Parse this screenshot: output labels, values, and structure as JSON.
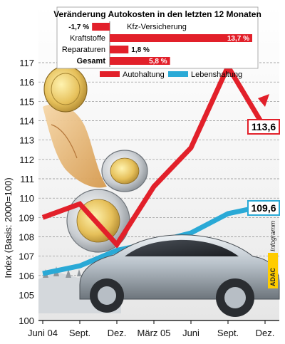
{
  "chart_data": {
    "type": "line",
    "title": "",
    "ylabel": "Index (Basis: 2000=100)",
    "xlabel": "",
    "ylim": [
      100,
      118
    ],
    "yticks": [
      100,
      105,
      106,
      107,
      108,
      109,
      110,
      111,
      112,
      113,
      114,
      115,
      116,
      117
    ],
    "categories": [
      "Juni 04",
      "Sept.",
      "Dez.",
      "März 05",
      "Juni",
      "Sept.",
      "Dez."
    ],
    "grid": true,
    "series": [
      {
        "name": "Autohaltung",
        "color": "#e2202a",
        "values": [
          109.0,
          109.7,
          107.6,
          110.6,
          112.6,
          116.8,
          113.6
        ]
      },
      {
        "name": "Lebenshaltung",
        "color": "#2aa9d6",
        "values": [
          106.1,
          106.5,
          107.3,
          107.7,
          108.2,
          109.2,
          109.6
        ]
      }
    ],
    "end_labels": {
      "Autohaltung": "113,6",
      "Lebenshaltung": "109,6"
    },
    "legend_position": "top-right"
  },
  "inset": {
    "title": "Veränderung Autokosten in den letzten 12 Monaten",
    "rows": [
      {
        "label": "Kfz-Versicherung",
        "value": -1.7,
        "display": "-1,7 %",
        "bold": false
      },
      {
        "label": "Kraftstoffe",
        "value": 13.7,
        "display": "13,7 %",
        "bold": false
      },
      {
        "label": "Reparaturen",
        "value": 1.8,
        "display": "1,8 %",
        "bold": false
      },
      {
        "label": "Gesamt",
        "value": 5.8,
        "display": "5,8 %",
        "bold": true
      }
    ],
    "bar_color": "#e2202a"
  },
  "credit": {
    "brand": "ADAC",
    "text": "Infogramm"
  }
}
